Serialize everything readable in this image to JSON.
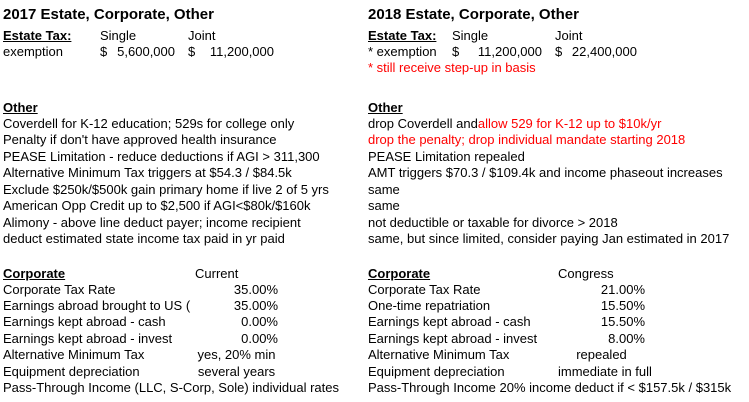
{
  "page": {
    "background": "#ffffff",
    "text_color": "#000000",
    "highlight_color": "#ff0000"
  },
  "left": {
    "title": "2017 Estate, Corporate, Other",
    "estate": {
      "heading": "Estate Tax:",
      "col_single": "Single",
      "col_joint": "Joint",
      "row_label": "exemption",
      "currency": "$",
      "single_value": "5,600,000",
      "joint_value": "11,200,000",
      "note": ""
    },
    "other": {
      "heading": "Other",
      "rows": [
        {
          "text": "Coverdell for K-12 education; 529s for college only",
          "text_red": ""
        },
        {
          "text": "Penalty if don't have approved health insurance",
          "text_red": ""
        },
        {
          "text": "PEASE Limitation - reduce deductions if AGI > 311,300",
          "text_red": ""
        },
        {
          "text": "Alternative Minimum Tax triggers at $54.3 / $84.5k",
          "text_red": ""
        },
        {
          "text": "Exclude $250k/$500k gain primary home if live 2 of 5 yrs",
          "text_red": ""
        },
        {
          "text": "American Opp Credit up to $2,500 if AGI<$80k/$160k",
          "text_red": ""
        },
        {
          "text": "Alimony - above line deduct payer; income recipient",
          "text_red": ""
        },
        {
          "text": "deduct estimated state income tax paid in yr paid",
          "text_red": ""
        }
      ]
    },
    "corporate": {
      "heading": "Corporate",
      "col_header": "Current",
      "rows": [
        {
          "label": "Corporate Tax Rate",
          "value": "35.00%"
        },
        {
          "label": "Earnings abroad brought to US (",
          "value": "35.00%"
        },
        {
          "label": "Earnings kept abroad - cash",
          "value": "0.00%"
        },
        {
          "label": "Earnings kept abroad - invest",
          "value": "0.00%"
        },
        {
          "label": "Alternative Minimum Tax",
          "value": "yes, 20% min"
        },
        {
          "label": "Equipment depreciation",
          "value": "several years"
        }
      ],
      "footer": "Pass-Through Income (LLC, S-Corp, Sole) individual rates"
    }
  },
  "right": {
    "title": "2018 Estate, Corporate, Other",
    "estate": {
      "heading": "Estate Tax:",
      "col_single": "Single",
      "col_joint": "Joint",
      "row_label": "* exemption",
      "currency": "$",
      "single_value": "11,200,000",
      "joint_value": "22,400,000",
      "note": "* still receive step-up in basis"
    },
    "other": {
      "heading": "Other",
      "rows": [
        {
          "text": "drop Coverdell and ",
          "text_red": "allow 529 for K-12 up to $10k/yr"
        },
        {
          "text": "",
          "text_red": "drop the penalty; drop individual mandate starting 2018"
        },
        {
          "text": "PEASE Limitation repealed",
          "text_red": ""
        },
        {
          "text": "AMT triggers $70.3 / $109.4k and income phaseout increases",
          "text_red": ""
        },
        {
          "text": "same",
          "text_red": ""
        },
        {
          "text": "same",
          "text_red": ""
        },
        {
          "text": "not deductible or taxable for divorce > 2018",
          "text_red": ""
        },
        {
          "text": "same, but since limited, consider paying Jan estimated in 2017",
          "text_red": ""
        }
      ]
    },
    "corporate": {
      "heading": "Corporate",
      "col_header": "Congress",
      "rows": [
        {
          "label": "Corporate Tax Rate",
          "value": "21.00%"
        },
        {
          "label": "One-time repatriation",
          "value": "15.50%"
        },
        {
          "label": "Earnings kept abroad - cash",
          "value": "15.50%"
        },
        {
          "label": "Earnings kept abroad - invest",
          "value": "8.00%"
        },
        {
          "label": "Alternative Minimum Tax",
          "value": "repealed"
        },
        {
          "label": "Equipment depreciation",
          "value": "immediate in full"
        }
      ],
      "footer": "Pass-Through Income 20% income deduct if < $157.5k / $315k"
    }
  }
}
